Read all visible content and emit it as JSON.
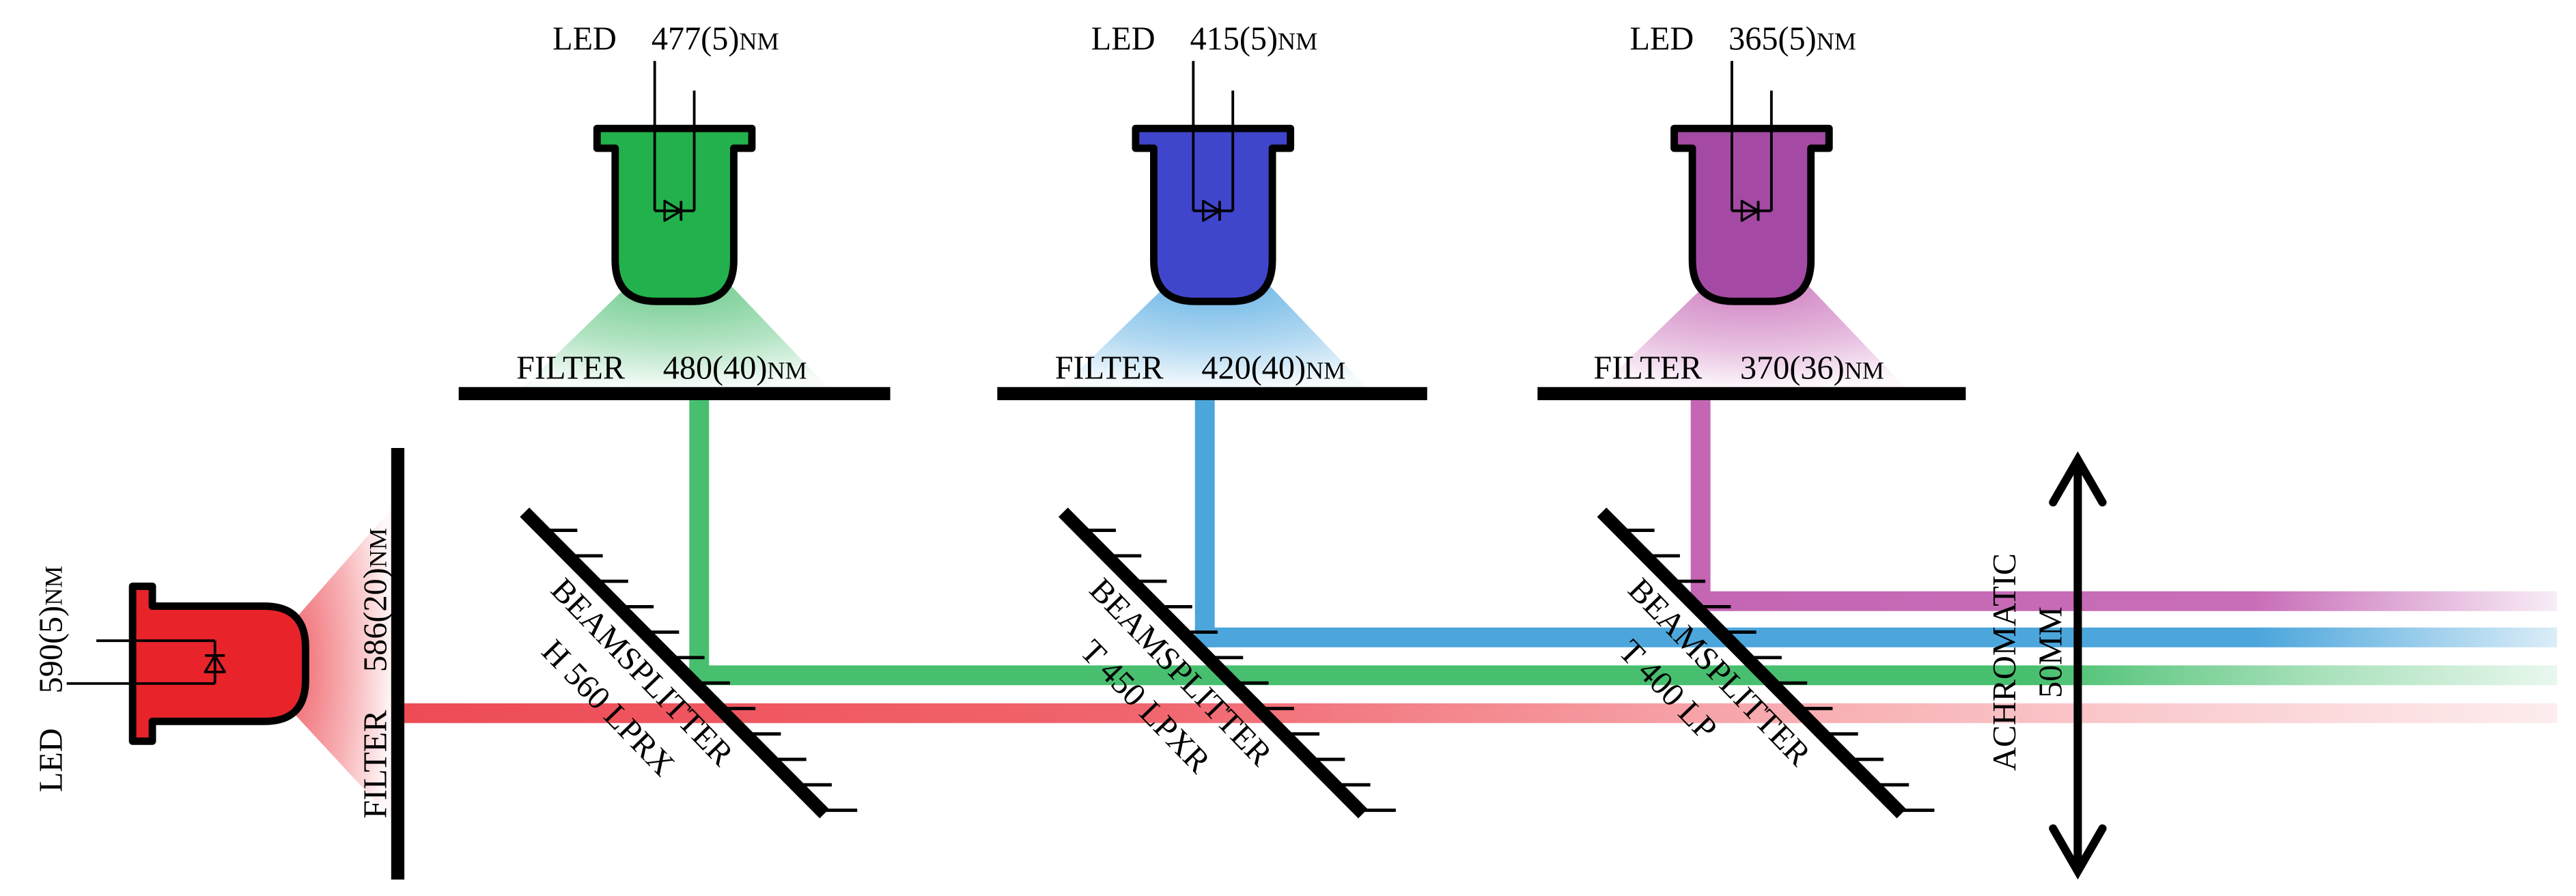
{
  "leds": [
    {
      "label": "LED",
      "wavelength": "590(5)",
      "unit": "NM"
    },
    {
      "label": "LED",
      "wavelength": "477(5)",
      "unit": "NM"
    },
    {
      "label": "LED",
      "wavelength": "415(5)",
      "unit": "NM"
    },
    {
      "label": "LED",
      "wavelength": "365(5)",
      "unit": "NM"
    }
  ],
  "filters": [
    {
      "label": "FILTER",
      "band": "586(20)",
      "unit": "NM"
    },
    {
      "label": "FILTER",
      "band": "480(40)",
      "unit": "NM"
    },
    {
      "label": "FILTER",
      "band": "420(40)",
      "unit": "NM"
    },
    {
      "label": "FILTER",
      "band": "370(36)",
      "unit": "NM"
    }
  ],
  "beamsplitters": [
    {
      "label": "BEAMSPLITTER",
      "spec": "H 560 LPRX"
    },
    {
      "label": "BEAMSPLITTER",
      "spec": "T 450 LPXR"
    },
    {
      "label": "BEAMSPLITTER",
      "spec": "T 400 LP"
    }
  ],
  "lens": {
    "label": "ACHROMATIC",
    "focal": "50MM"
  },
  "colors": {
    "red_led": "#e8242a",
    "green_led": "#23b14d",
    "blue_led": "#4046cc",
    "purple_led": "#a54aa4",
    "red_beam": "#ee4b55",
    "green_beam": "#48bf6f",
    "blue_beam": "#4ca6dc",
    "purple_beam": "#c566b4",
    "red_cone": "#ee5a62",
    "green_cone": "#5cc47f",
    "blue_cone": "#58ace2",
    "purple_cone": "#c96fb9"
  }
}
